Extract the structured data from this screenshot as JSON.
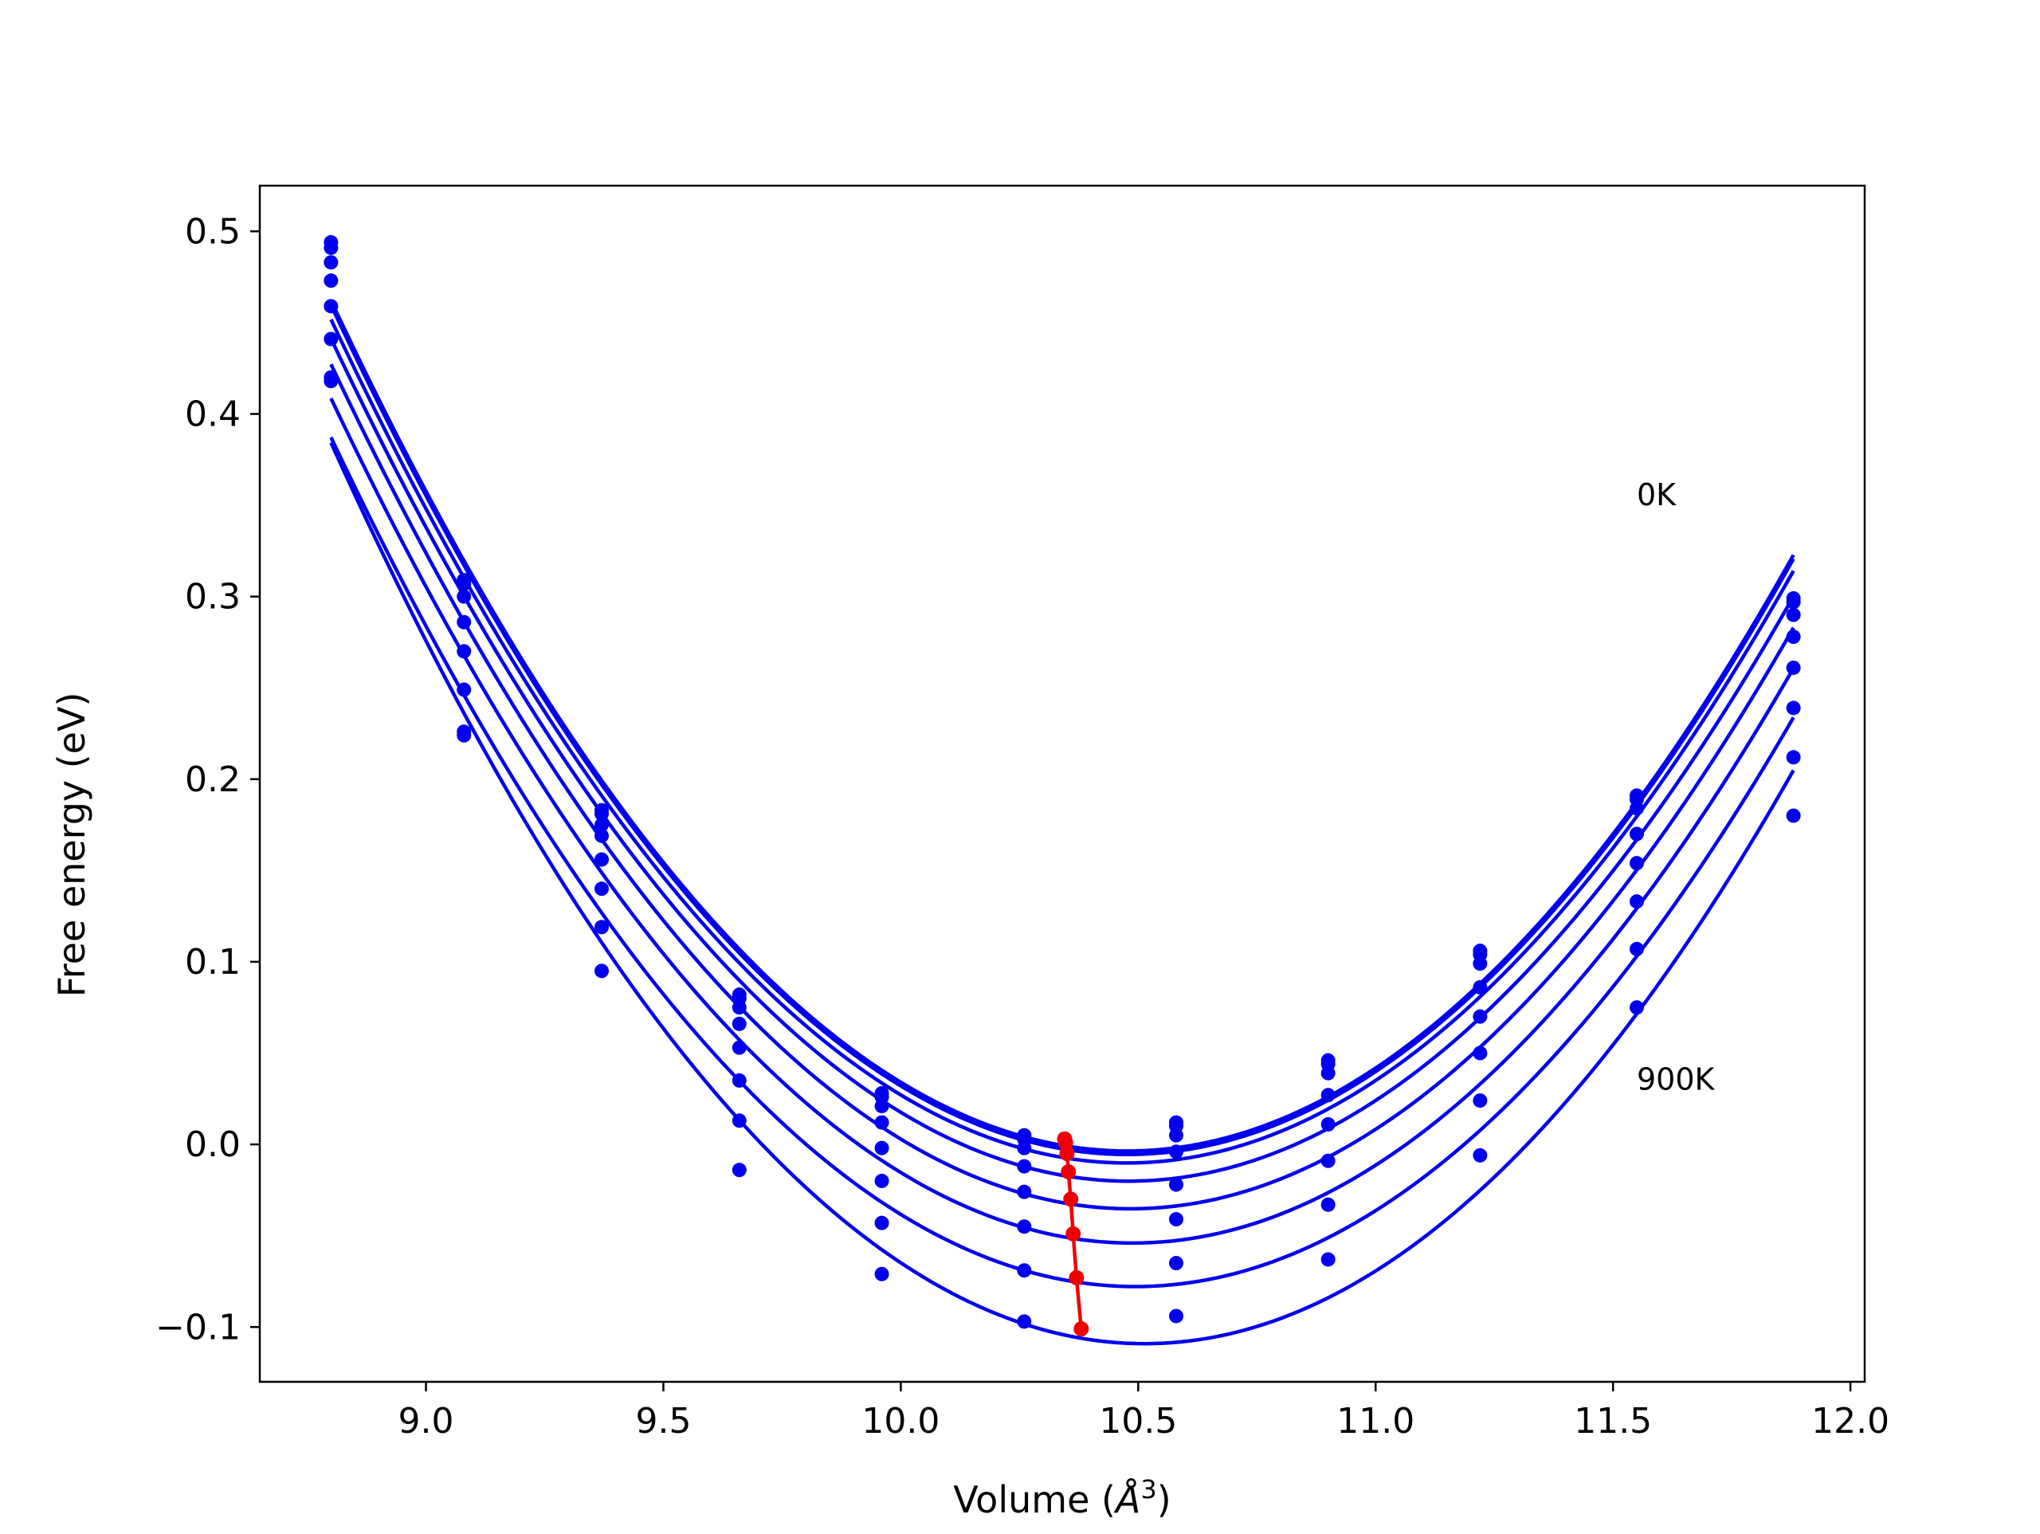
{
  "chart_data": {
    "type": "line",
    "title": "",
    "xlabel_prefix": "Volume (",
    "xlabel_symbol": "Å",
    "xlabel_exp": "3",
    "xlabel_suffix": ")",
    "ylabel": "Free energy (eV)",
    "xlim": [
      8.65,
      12.03
    ],
    "ylim": [
      -0.13,
      0.525
    ],
    "xticks": [
      9.0,
      9.5,
      10.0,
      10.5,
      11.0,
      11.5,
      12.0
    ],
    "xtick_labels": [
      "9.0",
      "9.5",
      "10.0",
      "10.5",
      "11.0",
      "11.5",
      "12.0"
    ],
    "yticks": [
      -0.1,
      0.0,
      0.1,
      0.2,
      0.3,
      0.4,
      0.5
    ],
    "ytick_labels": [
      "−0.1",
      "0.0",
      "0.1",
      "0.2",
      "0.3",
      "0.4",
      "0.5"
    ],
    "grid": false,
    "annotations": [
      {
        "text": "0K",
        "x": 11.55,
        "y": 0.35
      },
      {
        "text": "900K",
        "x": 11.55,
        "y": 0.03
      }
    ],
    "volumes": [
      8.8,
      9.08,
      9.37,
      9.66,
      9.96,
      10.26,
      10.58,
      10.9,
      11.22,
      11.55,
      11.88
    ],
    "series_color": "#0000ee",
    "minimum_color": "#ee0000",
    "series": [
      {
        "values": [
          0.494,
          0.309,
          0.183,
          0.082,
          0.028,
          0.005,
          0.012,
          0.046,
          0.106,
          0.191,
          0.299
        ]
      },
      {
        "values": [
          0.491,
          0.307,
          0.181,
          0.08,
          0.026,
          0.003,
          0.01,
          0.044,
          0.104,
          0.189,
          0.297
        ]
      },
      {
        "values": [
          0.483,
          0.3,
          0.175,
          0.075,
          0.021,
          -0.002,
          0.005,
          0.039,
          0.099,
          0.184,
          0.29
        ]
      },
      {
        "values": [
          0.473,
          0.286,
          0.169,
          0.066,
          0.012,
          -0.012,
          -0.004,
          0.027,
          0.086,
          0.17,
          0.278
        ]
      },
      {
        "values": [
          0.459,
          0.27,
          0.156,
          0.053,
          -0.002,
          -0.026,
          -0.022,
          0.011,
          0.07,
          0.154,
          0.261
        ]
      },
      {
        "values": [
          0.441,
          0.249,
          0.14,
          0.035,
          -0.02,
          -0.045,
          -0.041,
          -0.009,
          0.05,
          0.133,
          0.239
        ]
      },
      {
        "values": [
          0.42,
          0.226,
          0.119,
          0.013,
          -0.043,
          -0.069,
          -0.065,
          -0.033,
          0.024,
          0.107,
          0.212
        ]
      },
      {
        "values": [
          0.418,
          0.224,
          0.095,
          -0.014,
          -0.071,
          -0.097,
          -0.094,
          -0.063,
          -0.006,
          0.075,
          0.18
        ]
      }
    ],
    "minima": {
      "x": [
        10.345,
        10.347,
        10.35,
        10.353,
        10.358,
        10.363,
        10.37,
        10.38
      ],
      "y": [
        0.003,
        0.001,
        -0.005,
        -0.015,
        -0.03,
        -0.049,
        -0.073,
        -0.101
      ]
    }
  }
}
